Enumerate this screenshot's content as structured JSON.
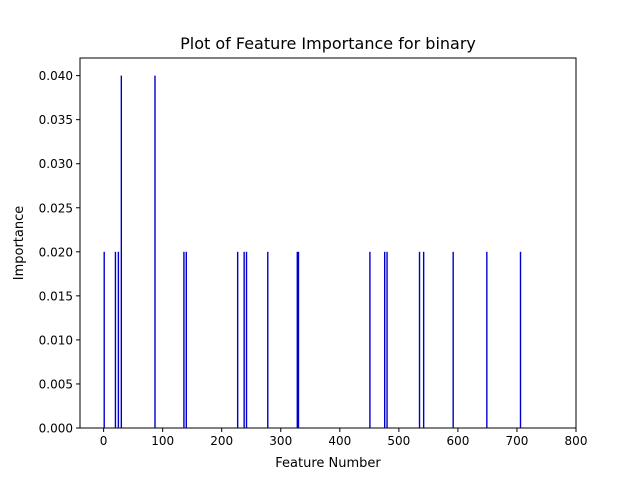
{
  "chart_data": {
    "type": "bar",
    "title": "Plot of Feature Importance for binary",
    "xlabel": "Feature Number",
    "ylabel": "Importance",
    "xlim": [
      -40,
      800
    ],
    "ylim": [
      0,
      0.042
    ],
    "xticks": [
      0,
      100,
      200,
      300,
      400,
      500,
      600,
      700,
      800
    ],
    "xtick_labels": [
      "0",
      "100",
      "200",
      "300",
      "400",
      "500",
      "600",
      "700",
      "800"
    ],
    "yticks": [
      0,
      0.005,
      0.01,
      0.015,
      0.02,
      0.025,
      0.03,
      0.035,
      0.04
    ],
    "ytick_labels": [
      "0.000",
      "0.005",
      "0.010",
      "0.015",
      "0.020",
      "0.025",
      "0.030",
      "0.035",
      "0.040"
    ],
    "grid": false,
    "bar_color": "#0000cc",
    "x": [
      1,
      20,
      25,
      30,
      87,
      136,
      140,
      227,
      238,
      242,
      278,
      328,
      330,
      451,
      476,
      480,
      535,
      542,
      592,
      649,
      706
    ],
    "values": [
      0.02,
      0.02,
      0.02,
      0.04,
      0.04,
      0.02,
      0.02,
      0.02,
      0.02,
      0.02,
      0.02,
      0.02,
      0.02,
      0.02,
      0.02,
      0.02,
      0.02,
      0.02,
      0.02,
      0.02,
      0.02
    ]
  }
}
